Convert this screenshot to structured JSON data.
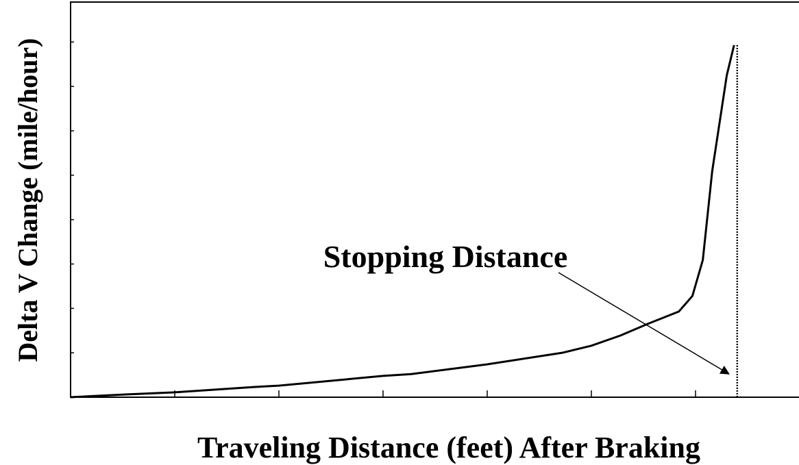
{
  "chart_data": {
    "type": "line",
    "x_label": "Traveling Distance (feet) After Braking",
    "y_label": "Delta V Change (mile/hour)",
    "x": [
      0,
      0.51,
      1,
      1.76,
      2,
      3,
      3.27,
      4,
      4.72,
      5,
      5.28,
      5.54,
      5.84,
      5.97,
      6.07,
      6.16,
      6.3,
      6.37
    ],
    "values": [
      0,
      0.06,
      0.11,
      0.23,
      0.26,
      0.48,
      0.52,
      0.74,
      1.0,
      1.16,
      1.39,
      1.65,
      1.93,
      2.28,
      3.09,
      5.09,
      7.25,
      7.93
    ],
    "color": "#000000",
    "xlim": [
      0,
      7
    ],
    "xticks": [
      0,
      1,
      2,
      3,
      4,
      5,
      6,
      7
    ],
    "ylim": [
      0,
      8.9
    ],
    "yticks": [
      0,
      1,
      2,
      3,
      4,
      5,
      6,
      7,
      8
    ],
    "annotation": {
      "text": "Stopping Distance",
      "x": 6.4
    }
  }
}
